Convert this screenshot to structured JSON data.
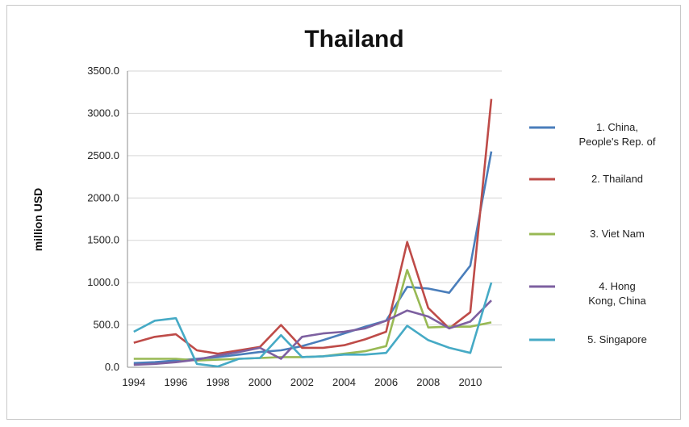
{
  "chart_data": {
    "type": "line",
    "title": "Thailand",
    "xlabel": "",
    "ylabel": "million USD",
    "ylim": [
      0,
      3500
    ],
    "yticks": [
      "0.0",
      "500.0",
      "1000.0",
      "1500.0",
      "2000.0",
      "2500.0",
      "3000.0",
      "3500.0"
    ],
    "xticks": [
      "1994",
      "1996",
      "1998",
      "2000",
      "2002",
      "2004",
      "2006",
      "2008",
      "2010"
    ],
    "x": [
      1994,
      1995,
      1996,
      1997,
      1998,
      1999,
      2000,
      2001,
      2002,
      2003,
      2004,
      2005,
      2006,
      2007,
      2008,
      2009,
      2010,
      2011
    ],
    "grid": "horizontal",
    "legend_position": "right",
    "series": [
      {
        "name": "1. China, People's Rep. of",
        "color": "#4a7ebb",
        "values": [
          50,
          60,
          80,
          100,
          120,
          150,
          180,
          200,
          250,
          320,
          400,
          480,
          550,
          950,
          930,
          880,
          1200,
          2550
        ]
      },
      {
        "name": "2. Thailand",
        "color": "#be4b48",
        "values": [
          290,
          360,
          390,
          200,
          160,
          200,
          240,
          500,
          230,
          230,
          260,
          330,
          420,
          1480,
          700,
          460,
          650,
          3170
        ]
      },
      {
        "name": "3. Viet Nam",
        "color": "#98b954",
        "values": [
          100,
          100,
          100,
          80,
          90,
          100,
          110,
          120,
          120,
          130,
          160,
          190,
          250,
          1150,
          470,
          480,
          480,
          530
        ]
      },
      {
        "name": "4. Hong Kong, China",
        "color": "#7d60a0",
        "values": [
          30,
          40,
          60,
          90,
          140,
          180,
          230,
          100,
          360,
          400,
          420,
          460,
          550,
          670,
          600,
          460,
          540,
          790
        ]
      },
      {
        "name": "5. Singapore",
        "color": "#46aac5",
        "values": [
          420,
          550,
          580,
          40,
          10,
          100,
          110,
          380,
          120,
          130,
          150,
          150,
          170,
          490,
          320,
          230,
          170,
          1000
        ]
      }
    ]
  }
}
